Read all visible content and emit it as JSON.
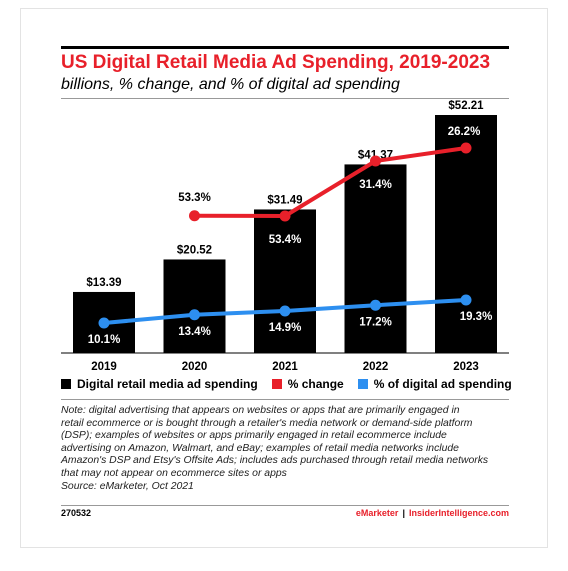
{
  "header": {
    "title": "US Digital Retail Media Ad Spending, 2019-2023",
    "subtitle": "billions, % change, and % of digital ad spending"
  },
  "colors": {
    "bar": "#000000",
    "pct_change": "#e8202a",
    "pct_digital": "#2d8ff0",
    "title": "#e8202a"
  },
  "chart_data": {
    "type": "bar",
    "title": "US Digital Retail Media Ad Spending, 2019-2023",
    "subtitle": "billions, % change, and % of digital ad spending",
    "categories": [
      "2019",
      "2020",
      "2021",
      "2022",
      "2023"
    ],
    "series": [
      {
        "name": "Digital retail media ad spending",
        "type": "bar",
        "values": [
          13.39,
          20.52,
          31.49,
          41.37,
          52.21
        ],
        "labels": [
          "$13.39",
          "$20.52",
          "$31.49",
          "$41.37",
          "$52.21"
        ]
      },
      {
        "name": "% change",
        "type": "line",
        "values": [
          null,
          53.3,
          53.4,
          31.4,
          26.2
        ],
        "labels": [
          "",
          "53.3%",
          "53.4%",
          "31.4%",
          "26.2%"
        ]
      },
      {
        "name": "% of digital ad spending",
        "type": "line",
        "values": [
          10.1,
          13.4,
          14.9,
          17.2,
          19.3
        ],
        "labels": [
          "10.1%",
          "13.4%",
          "14.9%",
          "17.2%",
          "19.3%"
        ]
      }
    ],
    "legend_position": "bottom",
    "grid": false
  },
  "notes": {
    "lines": [
      "Note: digital advertising that appears on websites or apps that are primarily engaged in",
      "retail ecommerce or is bought through a retailer's media network or demand-side platform",
      "(DSP); examples of websites or apps primarily engaged in retail ecommerce include",
      "advertising on Amazon, Walmart, and eBay; examples of retail media networks include",
      "Amazon's DSP and Etsy's Offsite Ads; includes ads purchased through retail media networks",
      "that may not appear on ecommerce sites or apps"
    ],
    "source": "Source: eMarketer, Oct 2021"
  },
  "footer": {
    "id": "270532",
    "brand1": "eMarketer",
    "separator": "|",
    "brand2": "InsiderIntelligence.com"
  }
}
